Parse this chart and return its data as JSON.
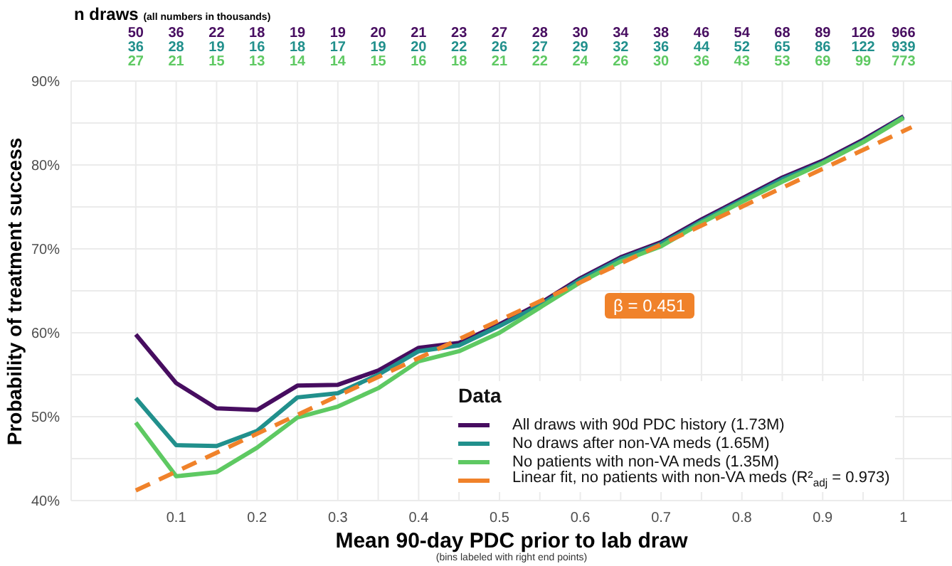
{
  "chart_data": {
    "type": "line",
    "xlabel": "Mean 90-day PDC prior to lab draw",
    "ylabel": "Probability of treatment success",
    "legend_title": "Data",
    "legend": "bottom right",
    "grid": true,
    "line_style": "solid",
    "x": [
      0.05,
      0.1,
      0.15,
      0.2,
      0.25,
      0.3,
      0.35,
      0.4,
      0.45,
      0.5,
      0.55,
      0.6,
      0.65,
      0.7,
      0.75,
      0.8,
      0.85,
      0.9,
      0.95,
      1
    ],
    "xlim": [
      -0.03,
      1.06
    ],
    "xticks": [
      {
        "value": 0.05,
        "label": null
      },
      {
        "value": 0.1,
        "label": "0.1"
      },
      {
        "value": 0.15,
        "label": null
      },
      {
        "value": 0.2,
        "label": "0.2"
      },
      {
        "value": 0.25,
        "label": null
      },
      {
        "value": 0.3,
        "label": "0.3"
      },
      {
        "value": 0.35,
        "label": null
      },
      {
        "value": 0.4,
        "label": "0.4"
      },
      {
        "value": 0.45,
        "label": null
      },
      {
        "value": 0.5,
        "label": "0.5"
      },
      {
        "value": 0.55,
        "label": null
      },
      {
        "value": 0.6,
        "label": "0.6"
      },
      {
        "value": 0.65,
        "label": null
      },
      {
        "value": 0.7,
        "label": "0.7"
      },
      {
        "value": 0.75,
        "label": null
      },
      {
        "value": 0.8,
        "label": "0.8"
      },
      {
        "value": 0.85,
        "label": null
      },
      {
        "value": 0.9,
        "label": "0.9"
      },
      {
        "value": 0.95,
        "label": null
      },
      {
        "value": 1,
        "label": "1"
      }
    ],
    "ylim": [
      40,
      90
    ],
    "yticks": [
      {
        "value": 40,
        "label": "40%"
      },
      {
        "value": 45,
        "label": null
      },
      {
        "value": 50,
        "label": "50%"
      },
      {
        "value": 55,
        "label": null
      },
      {
        "value": 60,
        "label": "60%"
      },
      {
        "value": 65,
        "label": null
      },
      {
        "value": 70,
        "label": "70%"
      },
      {
        "value": 75,
        "label": null
      },
      {
        "value": 80,
        "label": "80%"
      },
      {
        "value": 85,
        "label": null
      },
      {
        "value": 90,
        "label": "90%"
      }
    ],
    "series": [
      {
        "name": "All draws with 90d PDC history (1.73M)",
        "color": "#470d60",
        "values": [
          59.8,
          54,
          51,
          50.8,
          53.7,
          53.8,
          55.5,
          58.2,
          58.8,
          61,
          63.5,
          66.5,
          69,
          70.8,
          73.5,
          76,
          78.5,
          80.5,
          83,
          85.8
        ]
      },
      {
        "name": "No draws after non-VA meds (1.65M)",
        "color": "#21908c",
        "values": [
          52.2,
          46.6,
          46.5,
          48.3,
          52.3,
          52.8,
          55,
          57.8,
          58.5,
          60.8,
          63.3,
          66.3,
          68.8,
          70.6,
          73.3,
          75.8,
          78.3,
          80.3,
          82.8,
          85.7
        ]
      },
      {
        "name": "No patients with non-VA meds (1.35M)",
        "color": "#5ec962",
        "values": [
          49.3,
          42.9,
          43.4,
          46.3,
          49.9,
          51.2,
          53.4,
          56.6,
          57.8,
          60,
          63,
          66,
          68.5,
          70.3,
          73.1,
          75.6,
          78,
          80.2,
          82.7,
          85.6
        ]
      },
      {
        "name": "Linear fit, no patients with non-VA meds (R²$_{adj}$ = 0.973)",
        "color": "#f0822a",
        "type": "line",
        "line_style": "dashed",
        "x": [
          0.05,
          1.01
        ],
        "values": [
          41.2,
          84.5
        ]
      }
    ],
    "annotations": [
      "n draws",
      "(all numbers in thousands)",
      "β = 0.451",
      "(bins labeled with right end points)",
      "50",
      "36",
      "22",
      "18",
      "19",
      "19",
      "20",
      "21",
      "23",
      "27",
      "28",
      "30",
      "34",
      "38",
      "46",
      "54",
      "68",
      "89",
      "126",
      "966",
      "36",
      "28",
      "19",
      "16",
      "18",
      "17",
      "19",
      "20",
      "22",
      "26",
      "27",
      "29",
      "32",
      "36",
      "44",
      "52",
      "65",
      "86",
      "122",
      "939",
      "27",
      "21",
      "15",
      "13",
      "14",
      "14",
      "15",
      "16",
      "18",
      "21",
      "22",
      "24",
      "26",
      "30",
      "36",
      "43",
      "53",
      "69",
      "99",
      "773"
    ]
  }
}
